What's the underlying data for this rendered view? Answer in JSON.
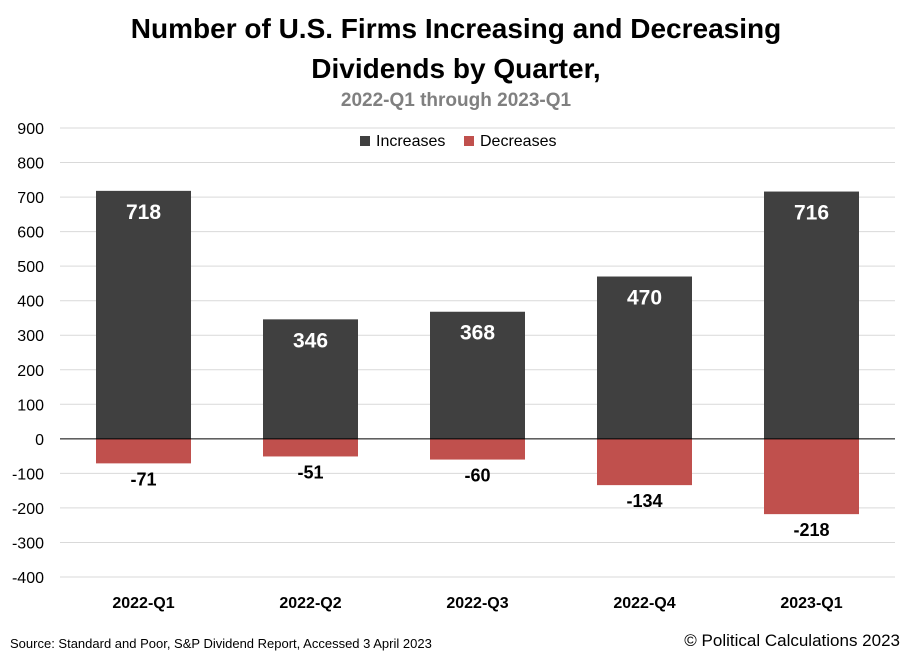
{
  "chart_data": {
    "type": "bar",
    "title_line1": "Number of U.S. Firms Increasing and Decreasing",
    "title_line2": "Dividends by Quarter,",
    "subtitle": "2022-Q1 through 2023-Q1",
    "categories": [
      "2022-Q1",
      "2022-Q2",
      "2022-Q3",
      "2022-Q4",
      "2023-Q1"
    ],
    "series": [
      {
        "name": "Increases",
        "color": "#404040",
        "values": [
          718,
          346,
          368,
          470,
          716
        ]
      },
      {
        "name": "Decreases",
        "color": "#c0504d",
        "values": [
          -71,
          -51,
          -60,
          -134,
          -218
        ]
      }
    ],
    "ylim": [
      -400,
      900
    ],
    "yticks": [
      900,
      800,
      700,
      600,
      500,
      400,
      300,
      200,
      100,
      0,
      -100,
      -200,
      -300,
      -400
    ],
    "grid": true,
    "legend": "top-center",
    "xlabel": "",
    "ylabel": ""
  },
  "footer": {
    "source": "Source: Standard and Poor, S&P Dividend Report, Accessed 3 April 2023",
    "copyright": "© Political Calculations 2023"
  }
}
